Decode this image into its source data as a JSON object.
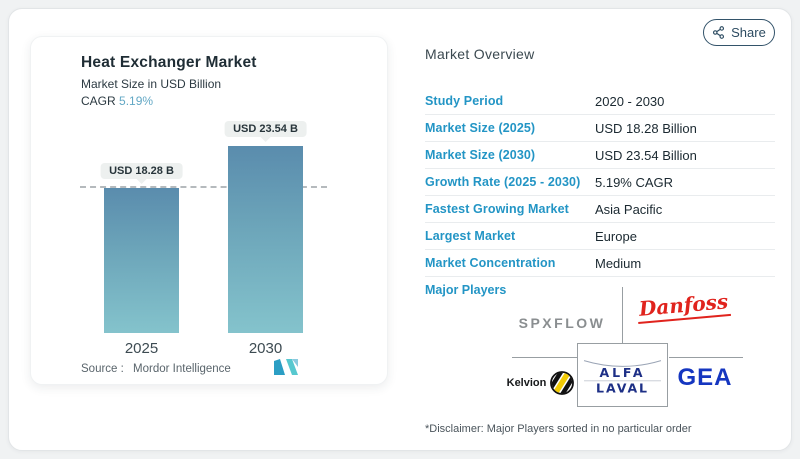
{
  "share": {
    "label": "Share",
    "icon": "share-nodes-icon"
  },
  "chart_panel": {
    "title": "Heat Exchanger Market",
    "subtitle": "Market Size in USD Billion",
    "cagr_label": "CAGR",
    "cagr_value": "5.19%",
    "source_label": "Source :",
    "source_value": "Mordor Intelligence"
  },
  "chart_data": {
    "type": "bar",
    "title": "Heat Exchanger Market",
    "ylabel": "Market Size in USD Billion",
    "categories": [
      "2025",
      "2030"
    ],
    "values": [
      18.28,
      23.54
    ],
    "bar_labels": [
      "USD 18.28 B",
      "USD 23.54 B"
    ],
    "unit": "USD Billion",
    "cagr_percent": 5.19,
    "reference_line": 18.28,
    "ylim": [
      0,
      23.54
    ],
    "grid": false,
    "legend": false
  },
  "overview": {
    "title": "Market Overview",
    "rows": [
      {
        "label": "Study Period",
        "value": "2020 - 2030"
      },
      {
        "label": "Market Size (2025)",
        "value": "USD 18.28 Billion"
      },
      {
        "label": "Market Size (2030)",
        "value": "USD 23.54 Billion"
      },
      {
        "label": "Growth Rate (2025 - 2030)",
        "value": "5.19% CAGR"
      },
      {
        "label": "Fastest Growing Market",
        "value": "Asia Pacific"
      },
      {
        "label": "Largest Market",
        "value": "Europe"
      },
      {
        "label": "Market Concentration",
        "value": "Medium"
      }
    ]
  },
  "major_players": {
    "label": "Major Players",
    "players": [
      "SPXFLOW",
      "Danfoss",
      "Kelvion",
      "Alfa Laval",
      "GEA"
    ],
    "logo_text": {
      "spxflow": "SPXFLOW",
      "danfoss": "Danfoss",
      "kelvion": "Kelvion",
      "alfa_line1": "ALFA",
      "alfa_line2": "LAVAL",
      "gea": "GEA"
    },
    "disclaimer": "*Disclaimer: Major Players sorted in no particular order"
  },
  "colors": {
    "accent_blue": "#2395c5",
    "cagr_value": "#63a8c5",
    "bar_gradient_top": "#5a8cad",
    "bar_gradient_bottom": "#84c3cc",
    "badge_background": "#edf0ef",
    "share_button": "#2c4b61",
    "danfoss_red": "#e0231d",
    "gea_blue": "#1536c0",
    "alfa_navy": "#1d2f86",
    "spxflow_gray": "#8a8e90",
    "kelvion_yellow": "#f2cb05",
    "mordor_logo_blue": "#2b9ec4",
    "mordor_logo_teal": "#57c8cf"
  }
}
